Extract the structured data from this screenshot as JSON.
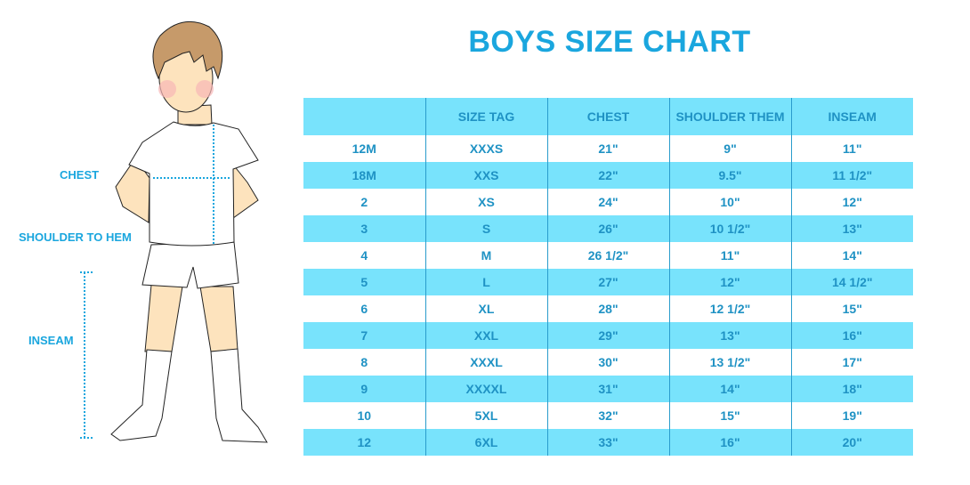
{
  "title": "BOYS SIZE CHART",
  "figure_labels": {
    "chest": "CHEST",
    "shoulder_to_hem": "SHOULDER TO HEM",
    "inseam": "INSEAM"
  },
  "table": {
    "headers": [
      "",
      "SIZE TAG",
      "CHEST",
      "SHOULDER THEM",
      "INSEAM"
    ],
    "rows": [
      [
        "12M",
        "XXXS",
        "21\"",
        "9\"",
        "11\""
      ],
      [
        "18M",
        "XXS",
        "22\"",
        "9.5\"",
        "11 1/2\""
      ],
      [
        "2",
        "XS",
        "24\"",
        "10\"",
        "12\""
      ],
      [
        "3",
        "S",
        "26\"",
        "10 1/2\"",
        "13\""
      ],
      [
        "4",
        "M",
        "26 1/2\"",
        "11\"",
        "14\""
      ],
      [
        "5",
        "L",
        "27\"",
        "12\"",
        "14 1/2\""
      ],
      [
        "6",
        "XL",
        "28\"",
        "12 1/2\"",
        "15\""
      ],
      [
        "7",
        "XXL",
        "29\"",
        "13\"",
        "16\""
      ],
      [
        "8",
        "XXXL",
        "30\"",
        "13 1/2\"",
        "17\""
      ],
      [
        "9",
        "XXXXL",
        "31\"",
        "14\"",
        "18\""
      ],
      [
        "10",
        "5XL",
        "32\"",
        "15\"",
        "19\""
      ],
      [
        "12",
        "6XL",
        "33\"",
        "16\"",
        "20\""
      ]
    ]
  },
  "colors": {
    "accent": "#1aa6de",
    "row_fill": "#78e3fc",
    "text": "#1f92c4"
  }
}
